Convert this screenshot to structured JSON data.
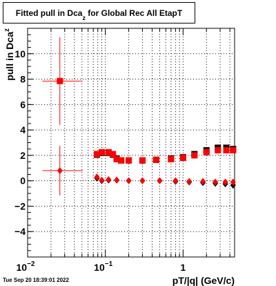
{
  "title": {
    "prefix": "Fitted pull in Dca",
    "subscript": "z",
    "suffix": " for Global Rec All EtapT"
  },
  "timestamp": "Tue Sep 20 18:39:01 2022",
  "chart_data": {
    "type": "scatter",
    "title": "Fitted pull in Dca_z for Global Rec All EtapT",
    "xlabel": "pT/|q| (GeV/c)",
    "ylabel": {
      "text": "pull in Dca",
      "subscript": "z"
    },
    "xscale": "log",
    "xlim": [
      0.01,
      4.6
    ],
    "ylim": [
      -6,
      12
    ],
    "grid": true,
    "x_ticks": [
      {
        "value": 0.01,
        "base": "10",
        "exp": "-2"
      },
      {
        "value": 0.1,
        "base": "10",
        "exp": "-1"
      },
      {
        "value": 1,
        "base": "1",
        "exp": ""
      }
    ],
    "y_ticks": [
      -4,
      -2,
      0,
      2,
      4,
      6,
      8,
      10
    ],
    "series": [
      {
        "marker": "square",
        "color": "#000000",
        "points": [
          {
            "x": 0.078,
            "y": 2.05
          },
          {
            "x": 0.09,
            "y": 2.2
          },
          {
            "x": 0.11,
            "y": 2.2
          },
          {
            "x": 0.125,
            "y": 2.05
          },
          {
            "x": 0.14,
            "y": 1.75
          },
          {
            "x": 0.16,
            "y": 1.6
          },
          {
            "x": 0.2,
            "y": 1.6
          },
          {
            "x": 0.3,
            "y": 1.6
          },
          {
            "x": 0.45,
            "y": 1.65
          },
          {
            "x": 0.7,
            "y": 1.75
          },
          {
            "x": 1.0,
            "y": 1.85
          },
          {
            "x": 1.4,
            "y": 2.1
          },
          {
            "x": 2.0,
            "y": 2.4
          },
          {
            "x": 2.8,
            "y": 2.6
          },
          {
            "x": 3.6,
            "y": 2.6
          },
          {
            "x": 4.4,
            "y": 2.5
          }
        ]
      },
      {
        "marker": "square",
        "color": "#ff0000",
        "points": [
          {
            "x": 0.026,
            "y": 7.85,
            "xerr": [
              0.0105,
              0.025
            ],
            "yerr": [
              3.45,
              3.45
            ]
          },
          {
            "x": 0.078,
            "y": 2.1
          },
          {
            "x": 0.09,
            "y": 2.25
          },
          {
            "x": 0.11,
            "y": 2.25
          },
          {
            "x": 0.125,
            "y": 2.1
          },
          {
            "x": 0.14,
            "y": 1.7
          },
          {
            "x": 0.16,
            "y": 1.6
          },
          {
            "x": 0.2,
            "y": 1.6
          },
          {
            "x": 0.3,
            "y": 1.6
          },
          {
            "x": 0.45,
            "y": 1.65
          },
          {
            "x": 0.7,
            "y": 1.7
          },
          {
            "x": 1.0,
            "y": 1.8
          },
          {
            "x": 1.4,
            "y": 2.0
          },
          {
            "x": 2.0,
            "y": 2.25
          },
          {
            "x": 2.8,
            "y": 2.4
          },
          {
            "x": 3.6,
            "y": 2.4
          },
          {
            "x": 4.4,
            "y": 2.4
          }
        ]
      },
      {
        "marker": "diamond",
        "color": "#000000",
        "points": [
          {
            "x": 0.078,
            "y": 0.2
          },
          {
            "x": 0.09,
            "y": 0.0
          },
          {
            "x": 0.11,
            "y": 0.05
          },
          {
            "x": 0.14,
            "y": 0.05
          },
          {
            "x": 0.2,
            "y": 0.0
          },
          {
            "x": 0.3,
            "y": 0.0
          },
          {
            "x": 0.5,
            "y": 0.0
          },
          {
            "x": 0.8,
            "y": -0.05
          },
          {
            "x": 1.2,
            "y": -0.1
          },
          {
            "x": 1.8,
            "y": -0.15
          },
          {
            "x": 2.6,
            "y": -0.2
          },
          {
            "x": 3.5,
            "y": -0.25
          },
          {
            "x": 4.4,
            "y": -0.35
          }
        ]
      },
      {
        "marker": "diamond",
        "color": "#ff0000",
        "points": [
          {
            "x": 0.026,
            "y": 0.8,
            "xerr": [
              0.0105,
              0.025
            ],
            "yerr": [
              1.95,
              1.95
            ]
          },
          {
            "x": 0.078,
            "y": 0.3
          },
          {
            "x": 0.09,
            "y": 0.05
          },
          {
            "x": 0.11,
            "y": 0.1
          },
          {
            "x": 0.14,
            "y": 0.05
          },
          {
            "x": 0.2,
            "y": 0.0
          },
          {
            "x": 0.3,
            "y": 0.0
          },
          {
            "x": 0.5,
            "y": 0.0
          },
          {
            "x": 0.8,
            "y": 0.0
          },
          {
            "x": 1.2,
            "y": -0.05
          },
          {
            "x": 1.8,
            "y": -0.05
          },
          {
            "x": 2.6,
            "y": -0.1
          },
          {
            "x": 3.5,
            "y": -0.1
          },
          {
            "x": 4.4,
            "y": -0.1
          }
        ]
      }
    ]
  }
}
